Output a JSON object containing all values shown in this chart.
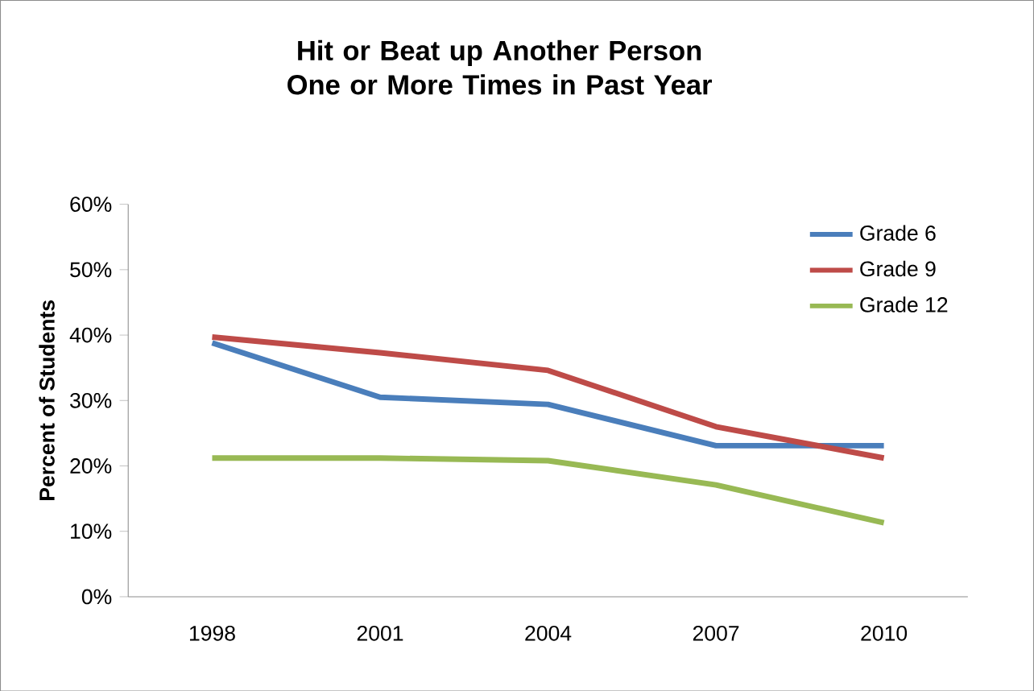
{
  "chart_data": {
    "type": "line",
    "title": "Hit or Beat up Another Person One or More Times in Past Year",
    "ylabel": "Percent of Students",
    "categories": [
      "1998",
      "2001",
      "2004",
      "2007",
      "2010"
    ],
    "series": [
      {
        "name": "Grade 6",
        "color": "#4a7ebb",
        "values": [
          38.8,
          30.5,
          29.4,
          23.1,
          23.1
        ]
      },
      {
        "name": "Grade 9",
        "color": "#be4b48",
        "values": [
          39.7,
          37.3,
          34.6,
          26.0,
          21.2
        ]
      },
      {
        "name": "Grade 12",
        "color": "#98b954",
        "values": [
          21.2,
          21.2,
          20.8,
          17.1,
          11.3
        ]
      }
    ],
    "ylim": [
      0,
      60
    ],
    "yticks": [
      {
        "value": 0,
        "label": "0%"
      },
      {
        "value": 10,
        "label": "10%"
      },
      {
        "value": 20,
        "label": "20%"
      },
      {
        "value": 30,
        "label": "30%"
      },
      {
        "value": 40,
        "label": "40%"
      },
      {
        "value": 50,
        "label": "50%"
      },
      {
        "value": 60,
        "label": "60%"
      }
    ],
    "grid": false,
    "legend": "top right",
    "marker": "none",
    "line_style": "solid"
  }
}
